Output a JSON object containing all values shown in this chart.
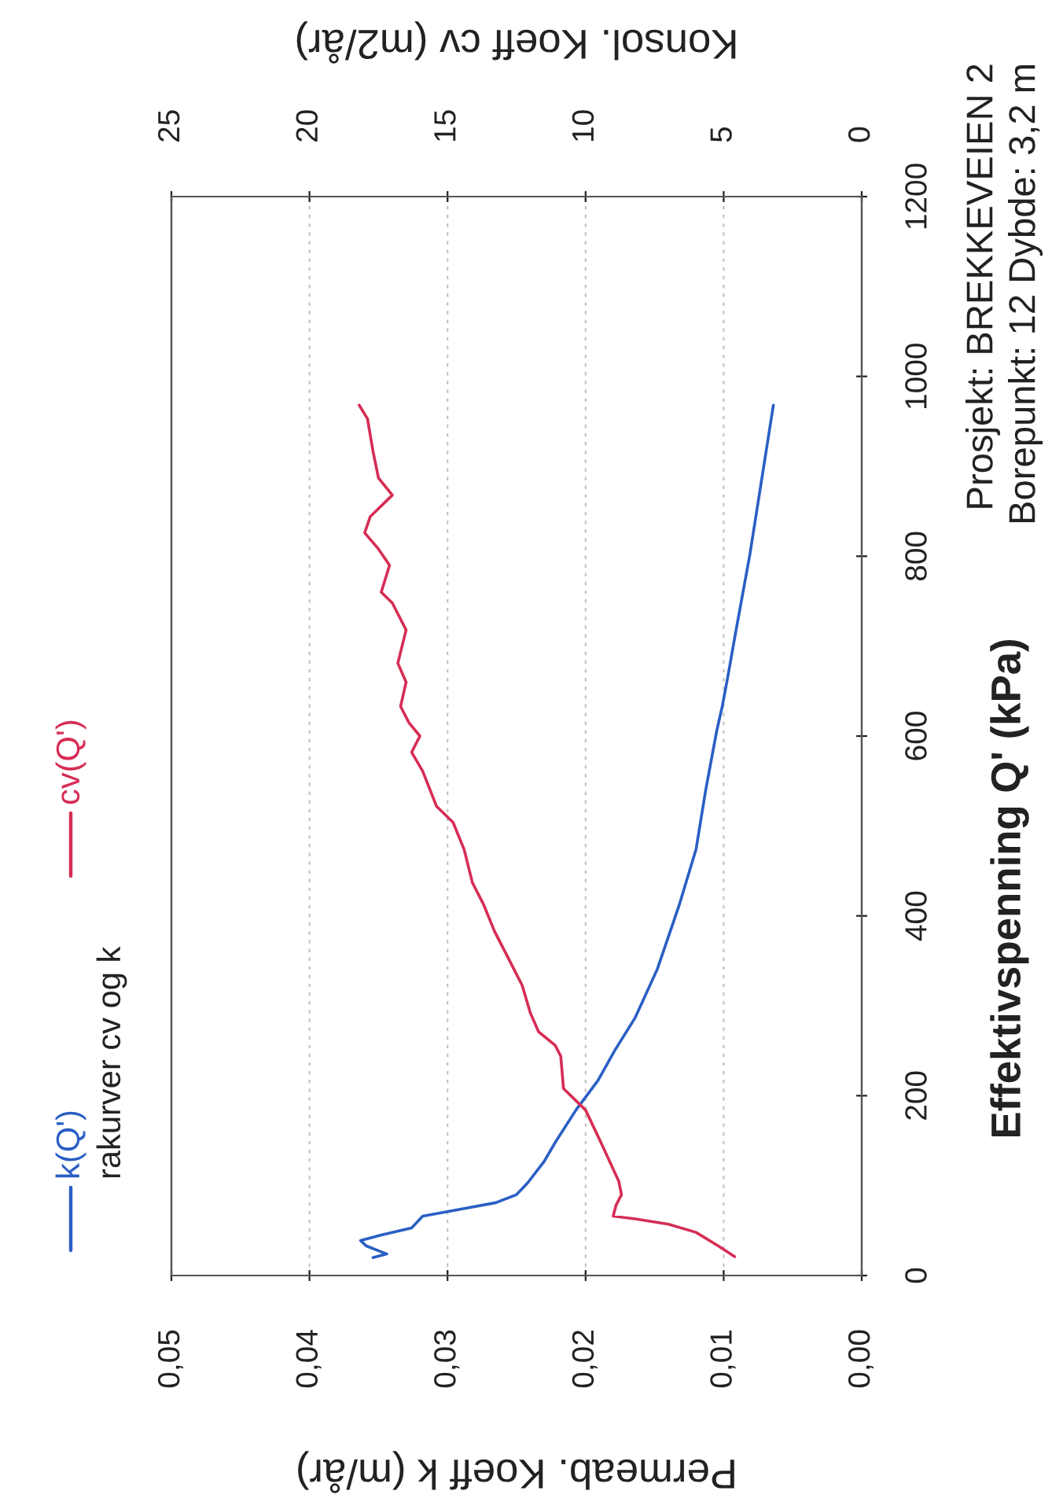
{
  "chart_data": {
    "type": "line",
    "xlabel": "Permeab. Koeff k (m/år)",
    "ylabel": "Effektivspenning Q' (kPa)",
    "x2label": "Konsol. Koeff cv (m2/år)",
    "legend_title": "rakurver cv og k",
    "annotations": [
      "Prosjekt: BREKKEVEIEN 2",
      "Borepunkt: 12 Dybde: 3,2 m"
    ],
    "xlim": [
      0.05,
      0
    ],
    "xticks": [
      {
        "value": 0.05,
        "label": "0,05"
      },
      {
        "value": 0.04,
        "label": "0,04"
      },
      {
        "value": 0.03,
        "label": "0,03"
      },
      {
        "value": 0.02,
        "label": "0,02"
      },
      {
        "value": 0.01,
        "label": "0,01"
      },
      {
        "value": 0,
        "label": "0,00"
      }
    ],
    "ylim": [
      0,
      1200
    ],
    "yticks": [
      0,
      200,
      400,
      600,
      800,
      1000,
      1200
    ],
    "x2lim": [
      25,
      0
    ],
    "x2ticks": [
      25,
      20,
      15,
      10,
      5,
      0
    ],
    "grid": "x",
    "legend": "left",
    "series": [
      {
        "name": "k(Q')",
        "color": "#2a5fc4",
        "x": [
          0.0354,
          0.0344,
          0.0359,
          0.0363,
          0.0348,
          0.0326,
          0.0318,
          0.0297,
          0.0265,
          0.025,
          0.0242,
          0.023,
          0.0222,
          0.0207,
          0.0191,
          0.0179,
          0.0164,
          0.0148,
          0.0132,
          0.012,
          0.0113,
          0.0105,
          0.0101,
          0.0097,
          0.0091,
          0.0081,
          0.0064
        ],
        "values": [
          20,
          24,
          33,
          39,
          45,
          53,
          66,
          72,
          81,
          90,
          103,
          127,
          148,
          184,
          217,
          250,
          287,
          341,
          413,
          474,
          540,
          606,
          633,
          666,
          718,
          802,
          968
        ]
      },
      {
        "name": "cv(Q')",
        "color": "#d62d55",
        "axis": "x2",
        "x": [
          4.6,
          5.2,
          6.0,
          7.0,
          8.2,
          9.0,
          8.9,
          8.7,
          8.8,
          9.4,
          10.0,
          10.8,
          10.9,
          11.1,
          11.7,
          12.0,
          12.3,
          12.8,
          13.3,
          13.7,
          14.1,
          14.4,
          14.8,
          15.4,
          15.9,
          16.3,
          16.0,
          16.4,
          16.7,
          16.5,
          16.8,
          16.5,
          17.0,
          17.4,
          17.1,
          17.5,
          18.0,
          17.8,
          17.0,
          17.5,
          17.7,
          17.9,
          18.2
        ],
        "values": [
          21,
          33,
          48,
          57,
          63,
          66,
          78,
          90,
          105,
          145,
          184,
          208,
          244,
          256,
          271,
          292,
          323,
          353,
          383,
          413,
          437,
          474,
          504,
          522,
          561,
          582,
          600,
          615,
          633,
          660,
          681,
          718,
          748,
          760,
          790,
          808,
          826,
          844,
          868,
          887,
          917,
          953,
          968
        ]
      }
    ]
  }
}
